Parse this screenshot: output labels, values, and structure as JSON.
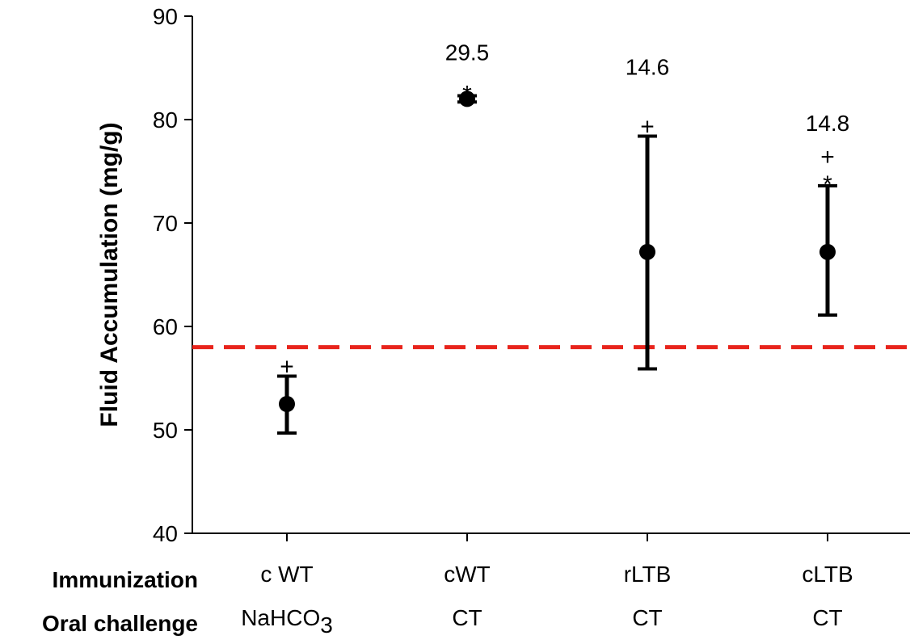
{
  "chart_data": {
    "type": "scatter",
    "title": "",
    "ylabel": "Fluid Accumulation (mg/g)",
    "xlabel": "",
    "ylim": [
      40,
      90
    ],
    "yticks": [
      "40",
      "50",
      "60",
      "70",
      "80",
      "90"
    ],
    "grid": false,
    "row_labels": {
      "immunization": "Immunization",
      "challenge": "Oral challenge"
    },
    "categories": [
      {
        "immunization": "c WT",
        "challenge": "NaHCO",
        "challenge_sub": "3",
        "mean": 52.5,
        "err_low": 49.7,
        "err_high": 55.2,
        "value_label": "",
        "markers": [
          "+"
        ]
      },
      {
        "immunization": "cWT",
        "challenge": "CT",
        "challenge_sub": "",
        "mean": 82.0,
        "err_low": 81.7,
        "err_high": 82.3,
        "value_label": "29.5",
        "markers": [
          "*"
        ]
      },
      {
        "immunization": "rLTB",
        "challenge": "CT",
        "challenge_sub": "",
        "mean": 67.2,
        "err_low": 55.9,
        "err_high": 78.4,
        "value_label": "14.6",
        "markers": [
          "+"
        ]
      },
      {
        "immunization": "cLTB",
        "challenge": "CT",
        "challenge_sub": "",
        "mean": 67.2,
        "err_low": 61.1,
        "err_high": 73.6,
        "value_label": "14.8",
        "markers": [
          "+",
          "*"
        ]
      }
    ],
    "reference_line": {
      "y": 58.0,
      "color": "#e8241c",
      "style": "dashed"
    },
    "colors": {
      "points": "#000000",
      "axis": "#000000"
    }
  }
}
